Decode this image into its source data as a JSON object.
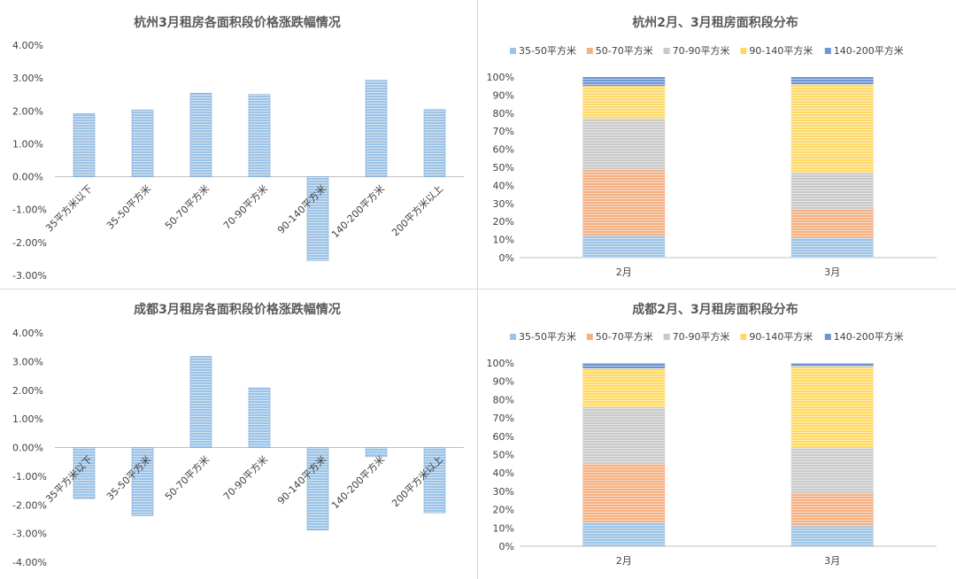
{
  "chart_data": [
    {
      "type": "bar",
      "title": "杭州3月租房各面积段价格涨跌幅情况",
      "categories": [
        "35平方米以下",
        "35-50平方米",
        "50-70平方米",
        "70-90平方米",
        "90-140平方米",
        "140-200平方米",
        "200平方米以上"
      ],
      "values": [
        1.92,
        2.03,
        2.54,
        2.5,
        -2.55,
        2.93,
        2.04
      ],
      "yticks": [
        "4.00%",
        "3.00%",
        "2.00%",
        "1.00%",
        "0.00%",
        "-1.00%",
        "-2.00%",
        "-3.00%"
      ],
      "ylim": [
        -3,
        4
      ],
      "grid": false,
      "color": "#9dc3e6"
    },
    {
      "type": "bar",
      "stacked": true,
      "percent": true,
      "title": "杭州2月、3月租房面积段分布",
      "categories": [
        "2月",
        "3月"
      ],
      "legend_position": "top",
      "series": [
        {
          "name": "35-50平方米",
          "color": "#9dc3e6",
          "values": [
            12,
            11
          ]
        },
        {
          "name": "50-70平方米",
          "color": "#f4b183",
          "values": [
            37,
            16
          ]
        },
        {
          "name": "70-90平方米",
          "color": "#c9c9c9",
          "values": [
            28,
            20
          ]
        },
        {
          "name": "90-140平方米",
          "color": "#ffd966",
          "values": [
            18,
            49
          ]
        },
        {
          "name": "140-200平方米",
          "color": "#6f94d3",
          "values": [
            5,
            4
          ]
        }
      ],
      "yticks": [
        "100%",
        "90%",
        "80%",
        "70%",
        "60%",
        "50%",
        "40%",
        "30%",
        "20%",
        "10%",
        "0%"
      ],
      "ylim": [
        0,
        100
      ]
    },
    {
      "type": "bar",
      "title": "成都3月租房各面积段价格涨跌幅情况",
      "categories": [
        "35平方米以下",
        "35-50平方米",
        "50-70平方米",
        "70-90平方米",
        "90-140平方米",
        "140-200平方米",
        "200平方米以上"
      ],
      "values": [
        -1.78,
        -2.38,
        3.18,
        2.08,
        -2.88,
        -0.32,
        -2.28
      ],
      "yticks": [
        "4.00%",
        "3.00%",
        "2.00%",
        "1.00%",
        "0.00%",
        "-1.00%",
        "-2.00%",
        "-3.00%",
        "-4.00%"
      ],
      "ylim": [
        -4,
        4
      ],
      "grid": false,
      "color": "#9dc3e6"
    },
    {
      "type": "bar",
      "stacked": true,
      "percent": true,
      "title": "成都2月、3月租房面积段分布",
      "categories": [
        "2月",
        "3月"
      ],
      "legend_position": "top",
      "series": [
        {
          "name": "35-50平方米",
          "color": "#9dc3e6",
          "values": [
            13,
            11
          ]
        },
        {
          "name": "50-70平方米",
          "color": "#f4b183",
          "values": [
            32,
            18
          ]
        },
        {
          "name": "70-90平方米",
          "color": "#c9c9c9",
          "values": [
            31,
            25
          ]
        },
        {
          "name": "90-140平方米",
          "color": "#ffd966",
          "values": [
            21,
            44
          ]
        },
        {
          "name": "140-200平方米",
          "color": "#6f94d3",
          "values": [
            3,
            2
          ]
        }
      ],
      "yticks": [
        "100%",
        "90%",
        "80%",
        "70%",
        "60%",
        "50%",
        "40%",
        "30%",
        "20%",
        "10%",
        "0%"
      ],
      "ylim": [
        0,
        100
      ]
    }
  ]
}
